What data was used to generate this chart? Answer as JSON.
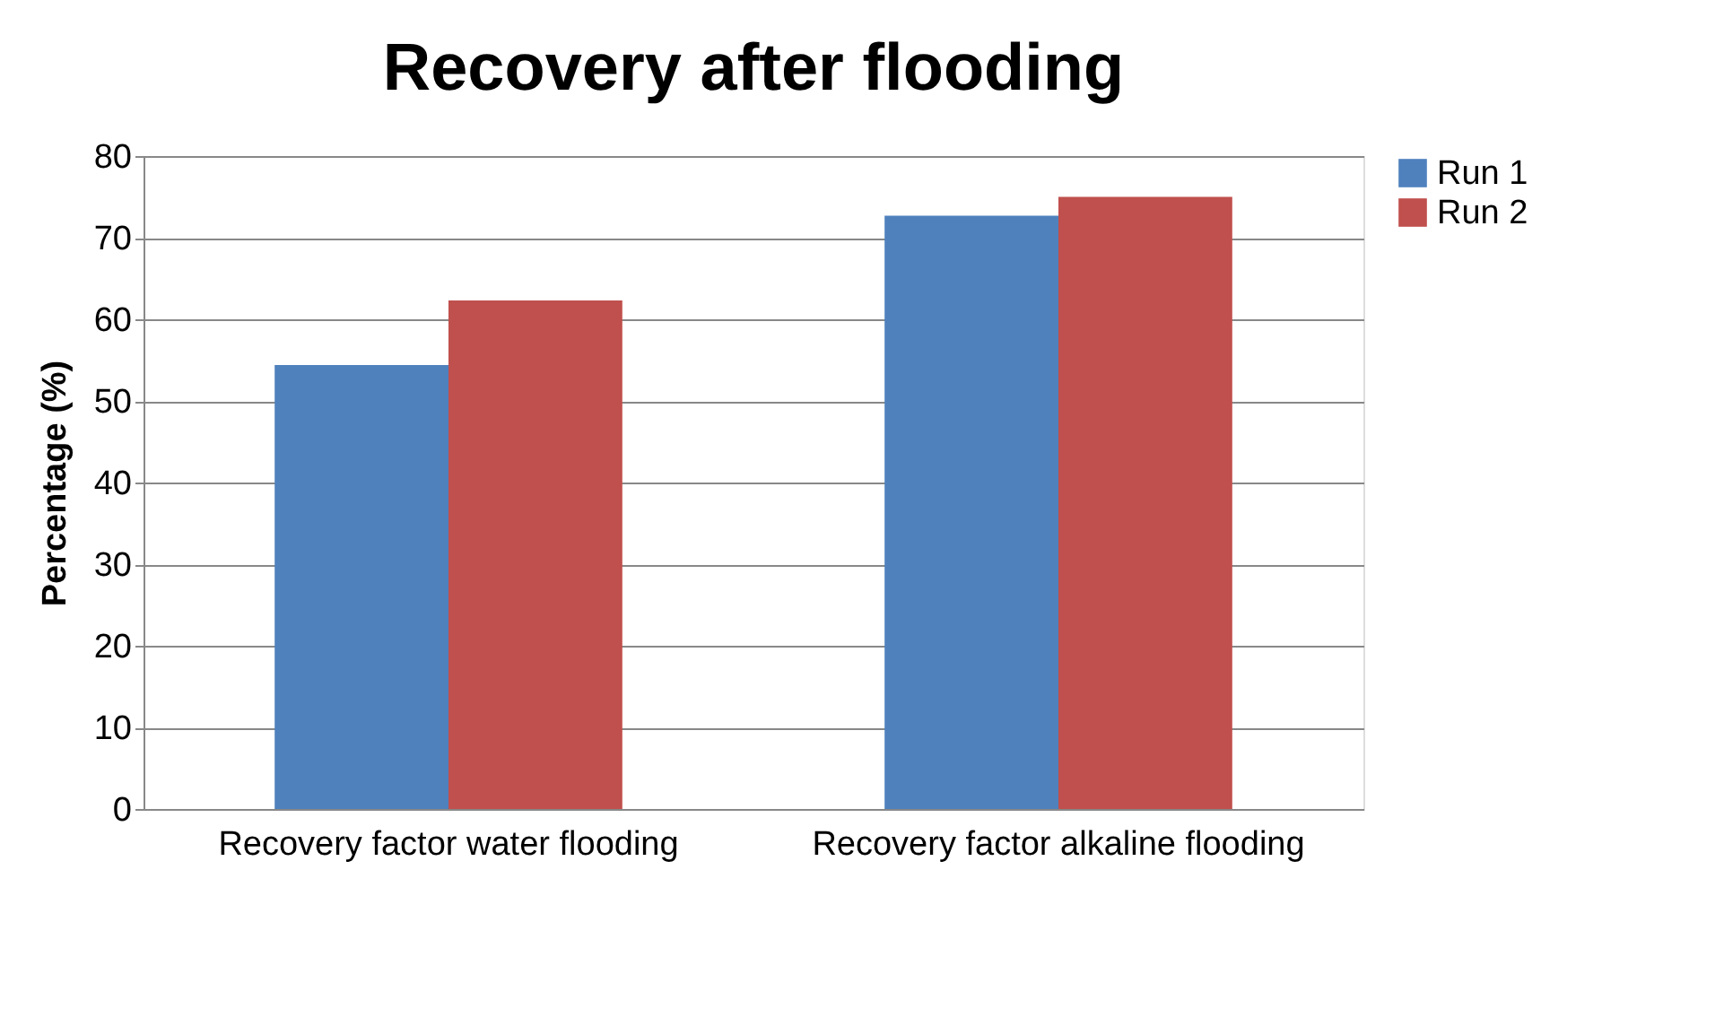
{
  "chart_data": {
    "type": "bar",
    "title": "Recovery after flooding",
    "ylabel": "Percentage (%)",
    "categories": [
      "Recovery factor water flooding",
      "Recovery factor alkaline flooding"
    ],
    "series": [
      {
        "name": "Run 1",
        "color": "#4f81bd",
        "values": [
          54.4,
          72.7
        ]
      },
      {
        "name": "Run 2",
        "color": "#c0504d",
        "values": [
          62.3,
          75.0
        ]
      }
    ],
    "ylim": [
      0,
      80
    ],
    "yticks": [
      0,
      10,
      20,
      30,
      40,
      50,
      60,
      70,
      80
    ],
    "grid": "y",
    "legend": "right"
  }
}
